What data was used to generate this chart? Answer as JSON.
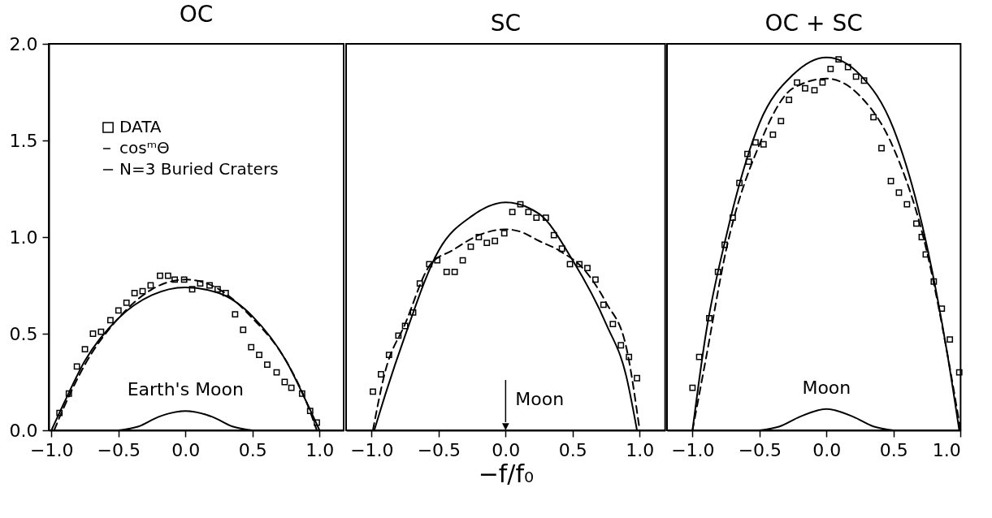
{
  "chart_data": [
    {
      "type": "scatter",
      "title": "OC",
      "xlim": [
        -1.02,
        1.18
      ],
      "ylim": [
        0,
        2
      ],
      "xticks": [
        {
          "value": -1,
          "label": "−1.0"
        },
        {
          "value": -0.5,
          "label": "−0.5"
        },
        {
          "value": 0,
          "label": "0.0"
        },
        {
          "value": 0.5,
          "label": "0.5"
        },
        {
          "value": 1,
          "label": "1.0"
        }
      ],
      "yticks": [
        {
          "value": 0,
          "label": "0.0"
        },
        {
          "value": 0.5,
          "label": "0.5"
        },
        {
          "value": 1,
          "label": "1.0"
        },
        {
          "value": 1.5,
          "label": "1.5"
        },
        {
          "value": 2,
          "label": "2.0"
        }
      ],
      "legend": "top left",
      "annotations": [
        "Earth's Moon"
      ],
      "series": [
        {
          "name": "DATA",
          "type": "scatter",
          "marker": "square",
          "color": "#000000",
          "x": [
            -0.94,
            -0.87,
            -0.81,
            -0.75,
            -0.69,
            -0.63,
            -0.56,
            -0.5,
            -0.44,
            -0.38,
            -0.32,
            -0.26,
            -0.19,
            -0.13,
            -0.08,
            -0.01,
            0.05,
            0.11,
            0.18,
            0.24,
            0.3,
            0.37,
            0.43,
            0.49,
            0.55,
            0.61,
            0.68,
            0.74,
            0.79,
            0.87,
            0.93,
            0.98
          ],
          "values": [
            0.09,
            0.19,
            0.33,
            0.42,
            0.5,
            0.51,
            0.57,
            0.62,
            0.66,
            0.71,
            0.72,
            0.75,
            0.8,
            0.8,
            0.78,
            0.78,
            0.73,
            0.76,
            0.75,
            0.73,
            0.71,
            0.6,
            0.52,
            0.43,
            0.39,
            0.34,
            0.3,
            0.25,
            0.22,
            0.19,
            0.1,
            0.04
          ]
        },
        {
          "name": "cosᵐΘ",
          "type": "line",
          "line_style": "dashed",
          "color": "#000000",
          "x": [
            -0.98,
            -0.9,
            -0.75,
            -0.5,
            -0.25,
            0,
            0.25,
            0.5,
            0.75,
            0.9,
            0.98
          ],
          "values": [
            0,
            0.13,
            0.34,
            0.58,
            0.73,
            0.78,
            0.73,
            0.58,
            0.36,
            0.15,
            0
          ]
        },
        {
          "name": "N=3 Buried Craters",
          "type": "line",
          "line_style": "solid",
          "color": "#000000",
          "x": [
            -1,
            -0.9,
            -0.75,
            -0.5,
            -0.25,
            0,
            0.25,
            0.5,
            0.75,
            0.9,
            1
          ],
          "values": [
            0,
            0.15,
            0.36,
            0.58,
            0.7,
            0.74,
            0.71,
            0.59,
            0.36,
            0.15,
            0
          ]
        },
        {
          "type": "line",
          "line_style": "solid",
          "color": "#000000",
          "x": [
            -0.5,
            -0.35,
            -0.2,
            0,
            0.2,
            0.35,
            0.5
          ],
          "values": [
            0,
            0.02,
            0.07,
            0.1,
            0.07,
            0.02,
            0
          ]
        }
      ]
    },
    {
      "type": "scatter",
      "title": "SC",
      "xlabel": "−f/f₀",
      "tick_labels": "x",
      "xlim": [
        -1.19,
        1.19
      ],
      "ylim": [
        0,
        2
      ],
      "xticks": [
        {
          "value": -1,
          "label": "−1.0"
        },
        {
          "value": -0.5,
          "label": "−0.5"
        },
        {
          "value": 0,
          "label": "0.0"
        },
        {
          "value": 0.5,
          "label": "0.5"
        },
        {
          "value": 1,
          "label": "1.0"
        }
      ],
      "annotations": [
        "Moon"
      ],
      "series": [
        {
          "type": "scatter",
          "marker": "square",
          "color": "#000000",
          "x": [
            -0.99,
            -0.93,
            -0.87,
            -0.8,
            -0.75,
            -0.69,
            -0.64,
            -0.57,
            -0.51,
            -0.44,
            -0.38,
            -0.32,
            -0.26,
            -0.2,
            -0.14,
            -0.08,
            -0.01,
            0.05,
            0.11,
            0.17,
            0.23,
            0.3,
            0.36,
            0.42,
            0.48,
            0.55,
            0.61,
            0.67,
            0.73,
            0.8,
            0.86,
            0.92,
            0.98
          ],
          "values": [
            0.2,
            0.29,
            0.39,
            0.49,
            0.54,
            0.61,
            0.76,
            0.86,
            0.88,
            0.82,
            0.82,
            0.88,
            0.95,
            1.0,
            0.97,
            0.98,
            1.02,
            1.13,
            1.17,
            1.13,
            1.1,
            1.1,
            1.01,
            0.94,
            0.86,
            0.86,
            0.84,
            0.78,
            0.65,
            0.55,
            0.44,
            0.38,
            0.27
          ]
        },
        {
          "type": "line",
          "line_style": "dashed",
          "color": "#000000",
          "x": [
            -0.99,
            -0.9,
            -0.75,
            -0.56,
            -0.4,
            -0.2,
            0,
            0.1,
            0.25,
            0.4,
            0.6,
            0.75,
            0.9,
            1
          ],
          "values": [
            0,
            0.3,
            0.55,
            0.86,
            0.93,
            1.01,
            1.04,
            1.03,
            0.98,
            0.93,
            0.82,
            0.66,
            0.43,
            0
          ]
        },
        {
          "type": "line",
          "line_style": "solid",
          "color": "#000000",
          "x": [
            -0.98,
            -0.9,
            -0.75,
            -0.5,
            -0.25,
            0,
            0.25,
            0.5,
            0.75,
            0.9,
            0.98
          ],
          "values": [
            0,
            0.18,
            0.49,
            0.93,
            1.11,
            1.18,
            1.12,
            0.88,
            0.55,
            0.28,
            0
          ]
        }
      ]
    },
    {
      "type": "scatter",
      "title": "OC + SC",
      "tick_labels": "x",
      "xlim": [
        -1.19,
        1.0
      ],
      "ylim": [
        0,
        2
      ],
      "xticks": [
        {
          "value": -1,
          "label": "−1.0"
        },
        {
          "value": -0.5,
          "label": "−0.5"
        },
        {
          "value": 0,
          "label": "0.0"
        },
        {
          "value": 0.5,
          "label": "0.5"
        },
        {
          "value": 1,
          "label": "1.0"
        }
      ],
      "annotations": [
        "Moon"
      ],
      "series": [
        {
          "type": "scatter",
          "marker": "square",
          "color": "#000000",
          "x": [
            -1.0,
            -0.95,
            -0.875,
            -0.81,
            -0.76,
            -0.7,
            -0.65,
            -0.58,
            -0.59,
            -0.53,
            -0.47,
            -0.4,
            -0.34,
            -0.28,
            -0.22,
            -0.16,
            -0.09,
            -0.03,
            0.03,
            0.09,
            0.16,
            0.22,
            0.28,
            0.35,
            0.41,
            0.48,
            0.54,
            0.6,
            0.67,
            0.71,
            0.74,
            0.8,
            0.86,
            0.92,
            0.99
          ],
          "values": [
            0.22,
            0.38,
            0.58,
            0.82,
            0.96,
            1.1,
            1.28,
            1.39,
            1.43,
            1.49,
            1.48,
            1.53,
            1.6,
            1.71,
            1.8,
            1.77,
            1.76,
            1.8,
            1.87,
            1.92,
            1.88,
            1.83,
            1.81,
            1.62,
            1.46,
            1.29,
            1.23,
            1.17,
            1.07,
            1.0,
            0.91,
            0.77,
            0.63,
            0.47,
            0.3
          ]
        },
        {
          "type": "line",
          "line_style": "dashed",
          "color": "#000000",
          "x": [
            -1,
            -0.9,
            -0.75,
            -0.5,
            -0.25,
            0,
            0.25,
            0.5,
            0.75,
            0.9,
            1
          ],
          "values": [
            0,
            0.37,
            0.93,
            1.48,
            1.77,
            1.82,
            1.73,
            1.46,
            0.92,
            0.4,
            0
          ]
        },
        {
          "type": "line",
          "line_style": "solid",
          "color": "#000000",
          "x": [
            -1,
            -0.9,
            -0.75,
            -0.5,
            -0.25,
            0,
            0.25,
            0.5,
            0.75,
            0.9,
            0.99
          ],
          "values": [
            0,
            0.5,
            1.0,
            1.59,
            1.84,
            1.93,
            1.84,
            1.56,
            0.95,
            0.4,
            0
          ]
        },
        {
          "type": "line",
          "line_style": "solid",
          "color": "#000000",
          "x": [
            -0.5,
            -0.35,
            -0.2,
            0,
            0.2,
            0.35,
            0.5
          ],
          "values": [
            0,
            0.02,
            0.07,
            0.11,
            0.07,
            0.02,
            0
          ]
        }
      ]
    }
  ]
}
